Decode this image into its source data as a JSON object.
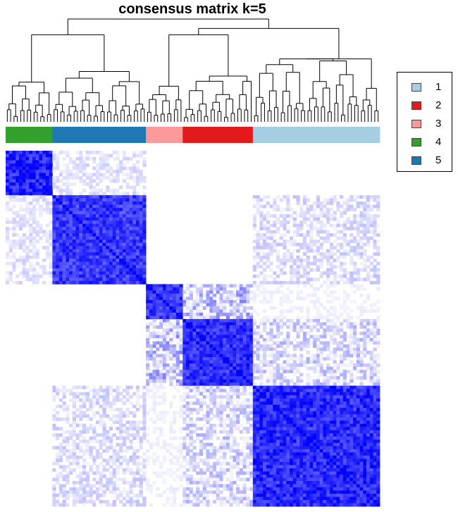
{
  "chart_data": {
    "type": "heatmap",
    "title": "consensus matrix k=5",
    "legend": {
      "placement": "right",
      "entries": [
        {
          "label": "1",
          "color": "#a6cee3"
        },
        {
          "label": "2",
          "color": "#e31a1c"
        },
        {
          "label": "3",
          "color": "#fb9a99"
        },
        {
          "label": "4",
          "color": "#33a02c"
        },
        {
          "label": "5",
          "color": "#1f78b4"
        }
      ]
    },
    "cluster_order": [
      "4",
      "5",
      "3",
      "2",
      "1"
    ],
    "cluster_sizes": [
      14,
      28,
      11,
      21,
      38
    ],
    "color_scale": {
      "low": "#ffffff",
      "high": "#0000ff",
      "range": [
        0,
        1
      ]
    },
    "block_consensus": [
      [
        0.85,
        0.12,
        0.0,
        0.0,
        0.0
      ],
      [
        0.12,
        0.78,
        0.02,
        0.01,
        0.15
      ],
      [
        0.0,
        0.02,
        0.8,
        0.3,
        0.05
      ],
      [
        0.0,
        0.01,
        0.3,
        0.82,
        0.2
      ],
      [
        0.0,
        0.15,
        0.05,
        0.2,
        0.83
      ]
    ]
  }
}
